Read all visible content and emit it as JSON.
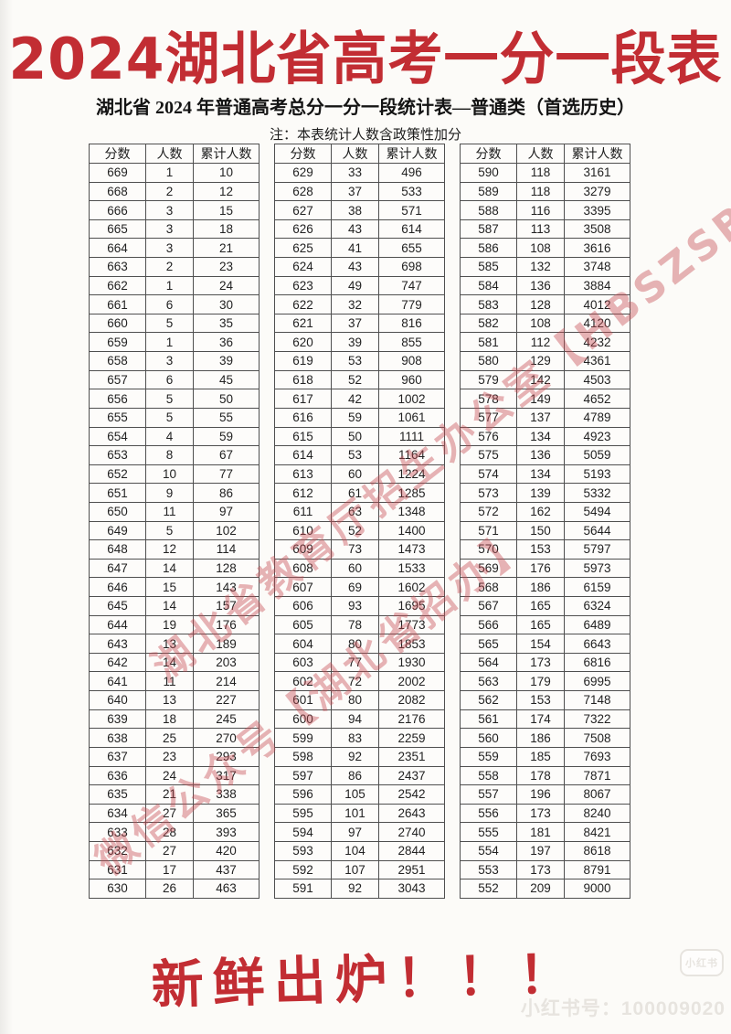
{
  "page": {
    "title": "2024湖北省高考一分一段表",
    "subtitle": "湖北省 2024 年普通高考总分一分一段统计表—普通类（首选历史）",
    "note": "注：本表统计人数含政策性加分",
    "footer": "新鲜出炉！！！",
    "watermark_line1": "湖北省教育厅招生办公室【HBSZSB】",
    "watermark_line2": "微信公众号【湖北省招办】",
    "xhs_badge": "小红书",
    "xhs_id": "小红书号：100009020"
  },
  "colors": {
    "accent-red": "#c22d33",
    "watermark-red": "rgba(197,76,84,0.42)",
    "border-gray": "#4f4f4f"
  },
  "table_headers": [
    "分数",
    "人数",
    "累计人数"
  ],
  "tables": [
    {
      "rows": [
        [
          669,
          1,
          10
        ],
        [
          668,
          2,
          12
        ],
        [
          666,
          3,
          15
        ],
        [
          665,
          3,
          18
        ],
        [
          664,
          3,
          21
        ],
        [
          663,
          2,
          23
        ],
        [
          662,
          1,
          24
        ],
        [
          661,
          6,
          30
        ],
        [
          660,
          5,
          35
        ],
        [
          659,
          1,
          36
        ],
        [
          658,
          3,
          39
        ],
        [
          657,
          6,
          45
        ],
        [
          656,
          5,
          50
        ],
        [
          655,
          5,
          55
        ],
        [
          654,
          4,
          59
        ],
        [
          653,
          8,
          67
        ],
        [
          652,
          10,
          77
        ],
        [
          651,
          9,
          86
        ],
        [
          650,
          11,
          97
        ],
        [
          649,
          5,
          102
        ],
        [
          648,
          12,
          114
        ],
        [
          647,
          14,
          128
        ],
        [
          646,
          15,
          143
        ],
        [
          645,
          14,
          157
        ],
        [
          644,
          19,
          176
        ],
        [
          643,
          13,
          189
        ],
        [
          642,
          14,
          203
        ],
        [
          641,
          11,
          214
        ],
        [
          640,
          13,
          227
        ],
        [
          639,
          18,
          245
        ],
        [
          638,
          25,
          270
        ],
        [
          637,
          23,
          293
        ],
        [
          636,
          24,
          317
        ],
        [
          635,
          21,
          338
        ],
        [
          634,
          27,
          365
        ],
        [
          633,
          28,
          393
        ],
        [
          632,
          27,
          420
        ],
        [
          631,
          17,
          437
        ],
        [
          630,
          26,
          463
        ]
      ]
    },
    {
      "rows": [
        [
          629,
          33,
          496
        ],
        [
          628,
          37,
          533
        ],
        [
          627,
          38,
          571
        ],
        [
          626,
          43,
          614
        ],
        [
          625,
          41,
          655
        ],
        [
          624,
          43,
          698
        ],
        [
          623,
          49,
          747
        ],
        [
          622,
          32,
          779
        ],
        [
          621,
          37,
          816
        ],
        [
          620,
          39,
          855
        ],
        [
          619,
          53,
          908
        ],
        [
          618,
          52,
          960
        ],
        [
          617,
          42,
          1002
        ],
        [
          616,
          59,
          1061
        ],
        [
          615,
          50,
          1111
        ],
        [
          614,
          53,
          1164
        ],
        [
          613,
          60,
          1224
        ],
        [
          612,
          61,
          1285
        ],
        [
          611,
          63,
          1348
        ],
        [
          610,
          52,
          1400
        ],
        [
          609,
          73,
          1473
        ],
        [
          608,
          60,
          1533
        ],
        [
          607,
          69,
          1602
        ],
        [
          606,
          93,
          1695
        ],
        [
          605,
          78,
          1773
        ],
        [
          604,
          80,
          1853
        ],
        [
          603,
          77,
          1930
        ],
        [
          602,
          72,
          2002
        ],
        [
          601,
          80,
          2082
        ],
        [
          600,
          94,
          2176
        ],
        [
          599,
          83,
          2259
        ],
        [
          598,
          92,
          2351
        ],
        [
          597,
          86,
          2437
        ],
        [
          596,
          105,
          2542
        ],
        [
          595,
          101,
          2643
        ],
        [
          594,
          97,
          2740
        ],
        [
          593,
          104,
          2844
        ],
        [
          592,
          107,
          2951
        ],
        [
          591,
          92,
          3043
        ]
      ]
    },
    {
      "rows": [
        [
          590,
          118,
          3161
        ],
        [
          589,
          118,
          3279
        ],
        [
          588,
          116,
          3395
        ],
        [
          587,
          113,
          3508
        ],
        [
          586,
          108,
          3616
        ],
        [
          585,
          132,
          3748
        ],
        [
          584,
          136,
          3884
        ],
        [
          583,
          128,
          4012
        ],
        [
          582,
          108,
          4120
        ],
        [
          581,
          112,
          4232
        ],
        [
          580,
          129,
          4361
        ],
        [
          579,
          142,
          4503
        ],
        [
          578,
          149,
          4652
        ],
        [
          577,
          137,
          4789
        ],
        [
          576,
          134,
          4923
        ],
        [
          575,
          136,
          5059
        ],
        [
          574,
          134,
          5193
        ],
        [
          573,
          139,
          5332
        ],
        [
          572,
          162,
          5494
        ],
        [
          571,
          150,
          5644
        ],
        [
          570,
          153,
          5797
        ],
        [
          569,
          176,
          5973
        ],
        [
          568,
          186,
          6159
        ],
        [
          567,
          165,
          6324
        ],
        [
          566,
          165,
          6489
        ],
        [
          565,
          154,
          6643
        ],
        [
          564,
          173,
          6816
        ],
        [
          563,
          179,
          6995
        ],
        [
          562,
          153,
          7148
        ],
        [
          561,
          174,
          7322
        ],
        [
          560,
          186,
          7508
        ],
        [
          559,
          185,
          7693
        ],
        [
          558,
          178,
          7871
        ],
        [
          557,
          196,
          8067
        ],
        [
          556,
          173,
          8240
        ],
        [
          555,
          181,
          8421
        ],
        [
          554,
          197,
          8618
        ],
        [
          553,
          173,
          8791
        ],
        [
          552,
          209,
          9000
        ]
      ]
    }
  ]
}
